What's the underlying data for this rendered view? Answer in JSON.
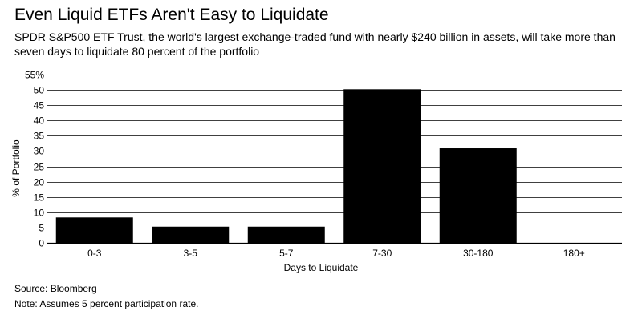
{
  "header": {
    "title": "Even Liquid ETFs Aren't Easy to Liquidate",
    "subtitle": "SPDR S&P500 ETF Trust, the world's largest exchange-traded fund with nearly $240 billion in assets, will take more than seven days to liquidate 80 percent of the portfolio"
  },
  "footer": {
    "source": "Source: Bloomberg",
    "note": "Note: Assumes 5 percent participation rate."
  },
  "chart_data": {
    "type": "bar",
    "title": "Even Liquid ETFs Aren't Easy to Liquidate",
    "subtitle": "SPDR S&P500 ETF Trust, the world's largest exchange-traded fund with nearly $240 billion in assets, will take more than seven days to liquidate 80 percent of the portfolio",
    "categories": [
      "0-3",
      "3-5",
      "5-7",
      "7-30",
      "30-180",
      "180+"
    ],
    "values": [
      8.3,
      5.3,
      5.3,
      50.2,
      30.9,
      0
    ],
    "xlabel": "Days to Liquidate",
    "ylabel": "% of Portfolio",
    "ylim": [
      0,
      55
    ],
    "yticks": [
      0,
      5,
      10,
      15,
      20,
      25,
      30,
      35,
      40,
      45,
      50,
      55
    ],
    "ytick_labels": [
      "0",
      "5",
      "10",
      "15",
      "20",
      "25",
      "30",
      "35",
      "40",
      "45",
      "50",
      "55%"
    ],
    "grid": true,
    "bar_color": "#000000",
    "grid_color": "#000000"
  }
}
